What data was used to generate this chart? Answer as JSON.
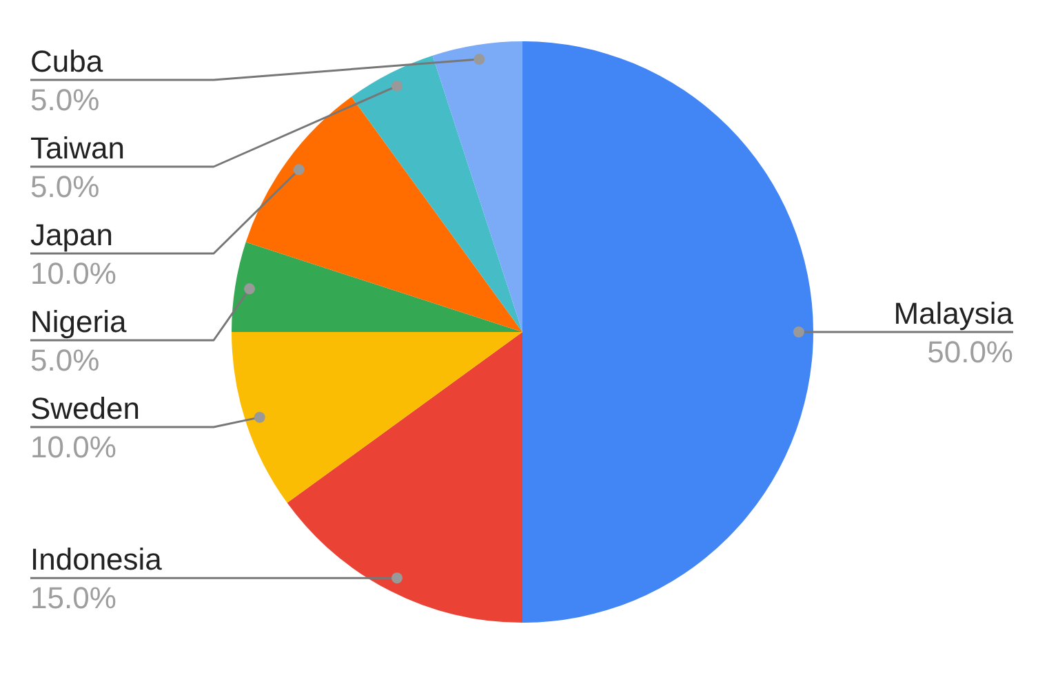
{
  "chart_data": {
    "type": "pie",
    "categories": [
      "Malaysia",
      "Indonesia",
      "Sweden",
      "Nigeria",
      "Japan",
      "Taiwan",
      "Cuba"
    ],
    "values": [
      50,
      15,
      10,
      5,
      10,
      5,
      5
    ],
    "colors": [
      "#4285f4",
      "#ea4335",
      "#fbbc04",
      "#34a853",
      "#ff6d01",
      "#46bdc6",
      "#7baaf7"
    ],
    "value_labels": [
      "50.0%",
      "15.0%",
      "10.0%",
      "5.0%",
      "10.0%",
      "5.0%",
      "5.0%"
    ],
    "legend": false
  }
}
